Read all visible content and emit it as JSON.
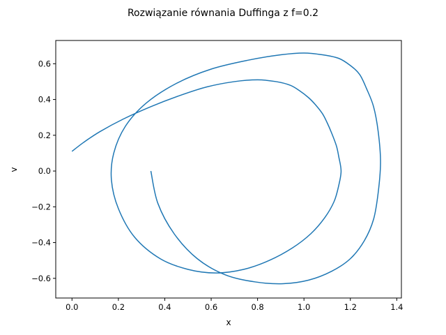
{
  "chart_data": {
    "type": "line",
    "title": "Rozwiązanie równania Duffinga z f=0.2",
    "xlabel": "x",
    "ylabel": "v",
    "xlim": [
      -0.07,
      1.42
    ],
    "ylim": [
      -0.71,
      0.73
    ],
    "xticks": [
      0.0,
      0.2,
      0.4,
      0.6,
      0.8,
      1.0,
      1.2,
      1.4
    ],
    "xtick_labels": [
      "0.0",
      "0.2",
      "0.4",
      "0.6",
      "0.8",
      "1.0",
      "1.2",
      "1.4"
    ],
    "yticks": [
      -0.6,
      -0.4,
      -0.2,
      0.0,
      0.2,
      0.4,
      0.6
    ],
    "ytick_labels": [
      "−0.6",
      "−0.4",
      "−0.2",
      "0.0",
      "0.2",
      "0.4",
      "0.6"
    ],
    "grid": false,
    "color": "#1f77b4",
    "series": [
      {
        "x": [
          0.0,
          0.05,
          0.12,
          0.22,
          0.34,
          0.46,
          0.58,
          0.7,
          0.8,
          0.88,
          0.94,
          0.98,
          1.02,
          1.05,
          1.08,
          1.1,
          1.12,
          1.14,
          1.15,
          1.16,
          1.15,
          1.13,
          1.09,
          1.03,
          0.95,
          0.85,
          0.74,
          0.62,
          0.5,
          0.38,
          0.27,
          0.2,
          0.17,
          0.18,
          0.23,
          0.32,
          0.45,
          0.6,
          0.76,
          0.9,
          1.0,
          1.08,
          1.15,
          1.2,
          1.24,
          1.27,
          1.3,
          1.32,
          1.33,
          1.32,
          1.3,
          1.26,
          1.2,
          1.12,
          1.02,
          0.91,
          0.79,
          0.66,
          0.54,
          0.44,
          0.37,
          0.34
        ],
        "y": [
          0.11,
          0.16,
          0.22,
          0.29,
          0.36,
          0.42,
          0.47,
          0.5,
          0.51,
          0.5,
          0.48,
          0.45,
          0.41,
          0.37,
          0.32,
          0.27,
          0.21,
          0.14,
          0.08,
          0.0,
          -0.08,
          -0.17,
          -0.26,
          -0.35,
          -0.43,
          -0.5,
          -0.55,
          -0.57,
          -0.55,
          -0.49,
          -0.37,
          -0.21,
          -0.05,
          0.1,
          0.25,
          0.38,
          0.49,
          0.57,
          0.62,
          0.65,
          0.66,
          0.65,
          0.63,
          0.59,
          0.54,
          0.46,
          0.36,
          0.22,
          0.05,
          -0.12,
          -0.27,
          -0.39,
          -0.49,
          -0.56,
          -0.61,
          -0.63,
          -0.62,
          -0.58,
          -0.49,
          -0.35,
          -0.18,
          0.0
        ]
      }
    ]
  }
}
